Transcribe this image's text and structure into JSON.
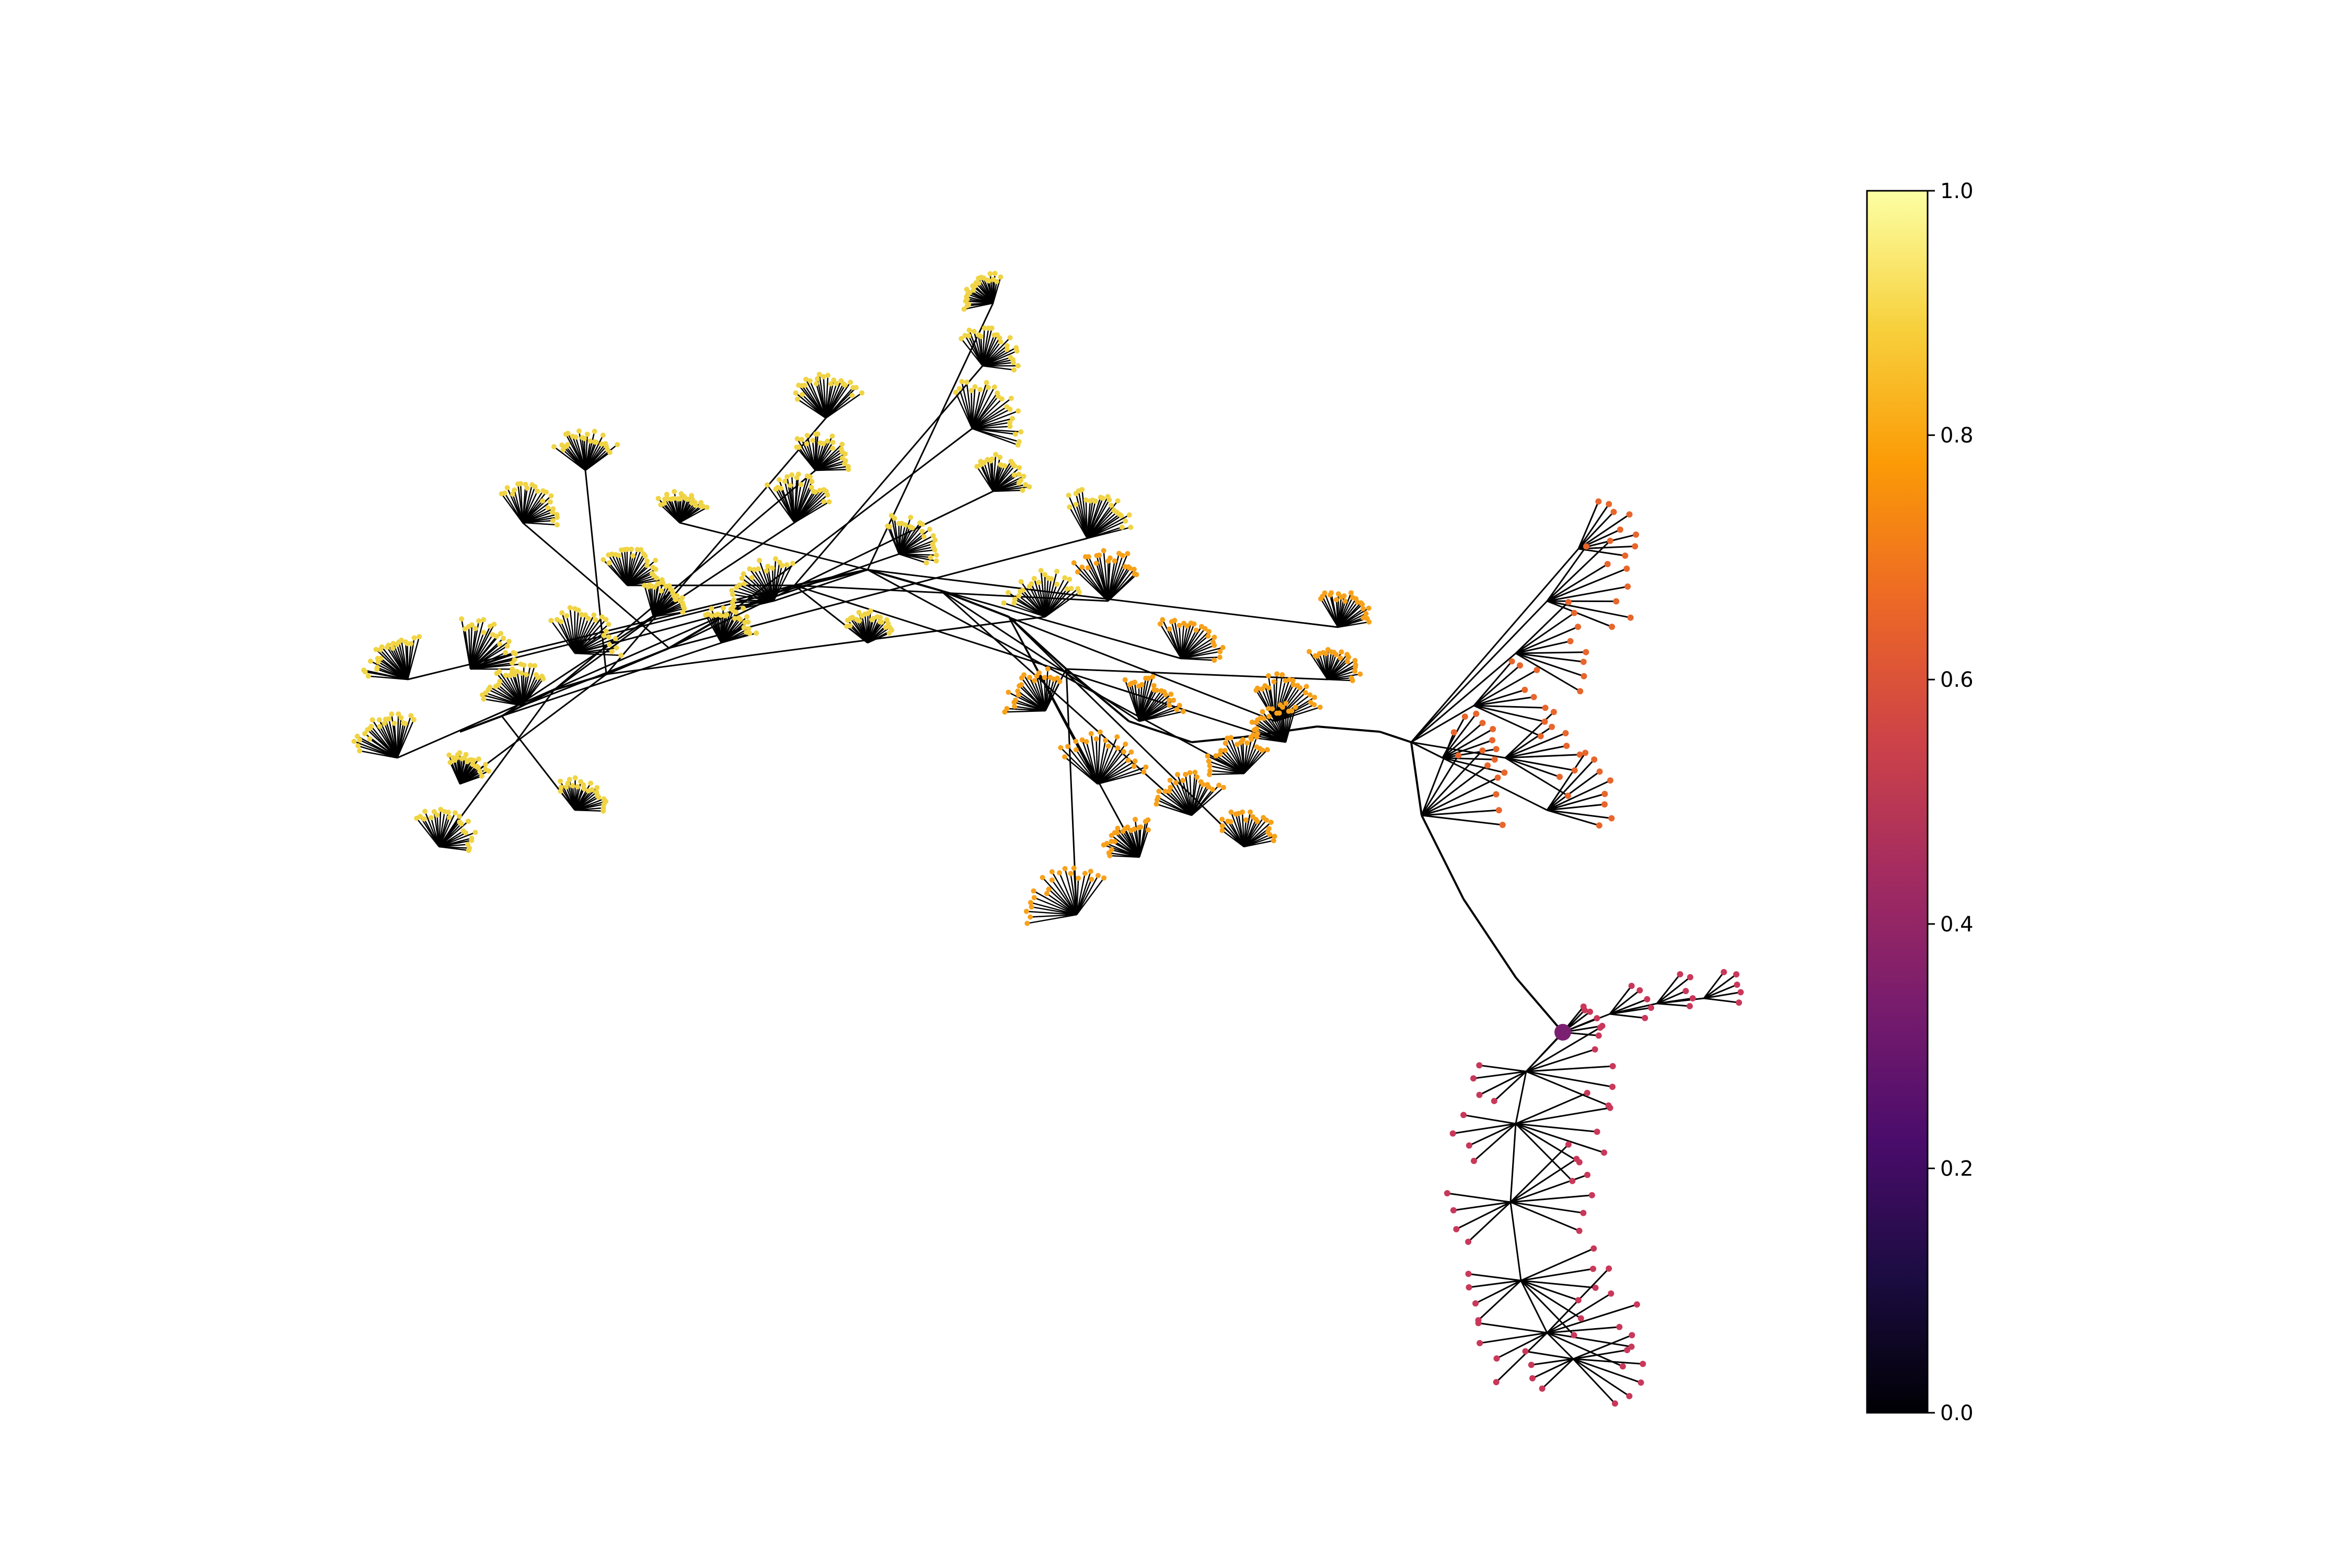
{
  "colorbar": {
    "colormap": "inferno",
    "range": [
      0.0,
      1.0
    ],
    "ticks": [
      "0.0",
      "0.2",
      "0.4",
      "0.6",
      "0.8",
      "1.0"
    ],
    "stops": [
      "#000004",
      "#1b0c41",
      "#4a0c6b",
      "#781c6d",
      "#a52c60",
      "#cf4446",
      "#ed6925",
      "#fb9b06",
      "#f7d13d",
      "#fcffa4"
    ]
  },
  "graph": {
    "type": "radial tree network",
    "edge_color": "#000000",
    "root_value": 0.35,
    "root_color": "#7b2070",
    "branch_colors": {
      "far_branches": "#f0d445",
      "middle_branches": "#f7a11a",
      "near_branches": "#e8662c",
      "root_subtree": "#c9385a"
    }
  }
}
